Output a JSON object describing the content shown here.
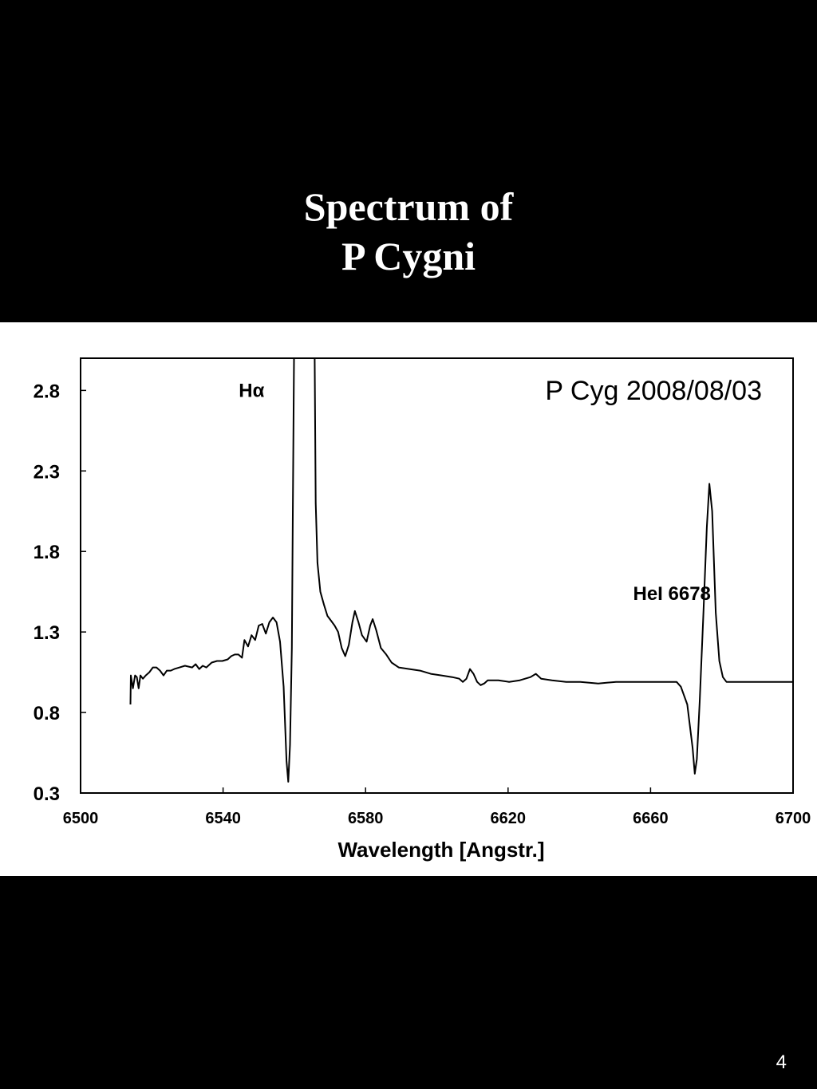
{
  "slide": {
    "title_line1": "Spectrum of",
    "title_line2": "P Cygni",
    "page_number": "4"
  },
  "colors": {
    "background": "#000000",
    "panel": "#ffffff",
    "ink": "#000000"
  },
  "chart_data": {
    "type": "line",
    "title": "P Cyg  2008/08/03",
    "xlabel": "Wavelength [Angstr.]",
    "ylabel": "",
    "xlim": [
      6500,
      6700
    ],
    "ylim": [
      0.3,
      3.0
    ],
    "x_ticks": [
      6500,
      6540,
      6580,
      6620,
      6660,
      6700
    ],
    "y_ticks": [
      0.3,
      0.8,
      1.3,
      1.8,
      2.3,
      2.8
    ],
    "grid": false,
    "annotations": [
      {
        "text": "Hα",
        "x": 6548,
        "y": 2.76
      },
      {
        "text": "HeI 6678",
        "x": 6666,
        "y": 1.5
      }
    ],
    "series": [
      {
        "values": [
          [
            6514.0,
            0.85
          ],
          [
            6514.1,
            1.03
          ],
          [
            6514.7,
            0.95
          ],
          [
            6515.3,
            1.03
          ],
          [
            6515.8,
            1.02
          ],
          [
            6516.3,
            0.95
          ],
          [
            6516.8,
            1.03
          ],
          [
            6517.5,
            1.01
          ],
          [
            6518.3,
            1.03
          ],
          [
            6519.3,
            1.05
          ],
          [
            6520.3,
            1.08
          ],
          [
            6521.3,
            1.08
          ],
          [
            6522.3,
            1.06
          ],
          [
            6523.3,
            1.03
          ],
          [
            6524.2,
            1.06
          ],
          [
            6525.3,
            1.06
          ],
          [
            6526.3,
            1.07
          ],
          [
            6527.8,
            1.08
          ],
          [
            6529.3,
            1.09
          ],
          [
            6531.3,
            1.08
          ],
          [
            6532.3,
            1.1
          ],
          [
            6533.3,
            1.07
          ],
          [
            6534.3,
            1.09
          ],
          [
            6535.3,
            1.08
          ],
          [
            6536.8,
            1.11
          ],
          [
            6538.3,
            1.12
          ],
          [
            6539.8,
            1.12
          ],
          [
            6541.3,
            1.13
          ],
          [
            6542.3,
            1.15
          ],
          [
            6543.3,
            1.16
          ],
          [
            6544.3,
            1.16
          ],
          [
            6545.3,
            1.14
          ],
          [
            6546.0,
            1.25
          ],
          [
            6547.0,
            1.21
          ],
          [
            6548.0,
            1.28
          ],
          [
            6549.0,
            1.25
          ],
          [
            6550.0,
            1.34
          ],
          [
            6551.0,
            1.35
          ],
          [
            6552.0,
            1.29
          ],
          [
            6553.0,
            1.36
          ],
          [
            6554.0,
            1.39
          ],
          [
            6555.0,
            1.36
          ],
          [
            6556.0,
            1.24
          ],
          [
            6557.0,
            0.96
          ],
          [
            6557.8,
            0.5
          ],
          [
            6558.3,
            0.37
          ],
          [
            6558.8,
            0.6
          ],
          [
            6559.3,
            1.2
          ],
          [
            6559.6,
            2.1
          ],
          [
            6559.9,
            3.0
          ],
          [
            6565.7,
            3.0
          ],
          [
            6566.0,
            2.1
          ],
          [
            6566.5,
            1.73
          ],
          [
            6567.3,
            1.55
          ],
          [
            6568.3,
            1.47
          ],
          [
            6569.3,
            1.4
          ],
          [
            6570.3,
            1.37
          ],
          [
            6571.3,
            1.34
          ],
          [
            6572.3,
            1.3
          ],
          [
            6573.3,
            1.2
          ],
          [
            6574.3,
            1.15
          ],
          [
            6575.3,
            1.22
          ],
          [
            6576.3,
            1.36
          ],
          [
            6577.0,
            1.43
          ],
          [
            6578.0,
            1.36
          ],
          [
            6579.0,
            1.28
          ],
          [
            6580.3,
            1.24
          ],
          [
            6581.3,
            1.34
          ],
          [
            6582.0,
            1.38
          ],
          [
            6583.0,
            1.31
          ],
          [
            6584.3,
            1.2
          ],
          [
            6585.8,
            1.16
          ],
          [
            6587.3,
            1.11
          ],
          [
            6589.3,
            1.08
          ],
          [
            6592.3,
            1.07
          ],
          [
            6595.3,
            1.06
          ],
          [
            6598.3,
            1.04
          ],
          [
            6601.3,
            1.03
          ],
          [
            6604.3,
            1.02
          ],
          [
            6606.3,
            1.01
          ],
          [
            6607.3,
            0.99
          ],
          [
            6608.3,
            1.01
          ],
          [
            6609.3,
            1.07
          ],
          [
            6610.3,
            1.04
          ],
          [
            6611.3,
            0.99
          ],
          [
            6612.3,
            0.97
          ],
          [
            6613.3,
            0.98
          ],
          [
            6614.3,
            1.0
          ],
          [
            6617.3,
            1.0
          ],
          [
            6620.3,
            0.99
          ],
          [
            6623.3,
            1.0
          ],
          [
            6626.3,
            1.02
          ],
          [
            6627.8,
            1.04
          ],
          [
            6629.3,
            1.01
          ],
          [
            6632.3,
            1.0
          ],
          [
            6636.3,
            0.99
          ],
          [
            6640.3,
            0.99
          ],
          [
            6645.3,
            0.98
          ],
          [
            6650.3,
            0.99
          ],
          [
            6655.3,
            0.99
          ],
          [
            6660.3,
            0.99
          ],
          [
            6665.3,
            0.99
          ],
          [
            6667.3,
            0.99
          ],
          [
            6668.5,
            0.96
          ],
          [
            6670.3,
            0.85
          ],
          [
            6671.8,
            0.58
          ],
          [
            6672.4,
            0.42
          ],
          [
            6673.0,
            0.51
          ],
          [
            6673.8,
            0.87
          ],
          [
            6674.8,
            1.4
          ],
          [
            6675.8,
            1.95
          ],
          [
            6676.5,
            2.22
          ],
          [
            6677.3,
            2.05
          ],
          [
            6678.3,
            1.42
          ],
          [
            6679.3,
            1.12
          ],
          [
            6680.3,
            1.02
          ],
          [
            6681.3,
            0.99
          ],
          [
            6685.3,
            0.99
          ],
          [
            6690.3,
            0.99
          ],
          [
            6695.3,
            0.99
          ],
          [
            6700.0,
            0.99
          ]
        ]
      }
    ]
  }
}
